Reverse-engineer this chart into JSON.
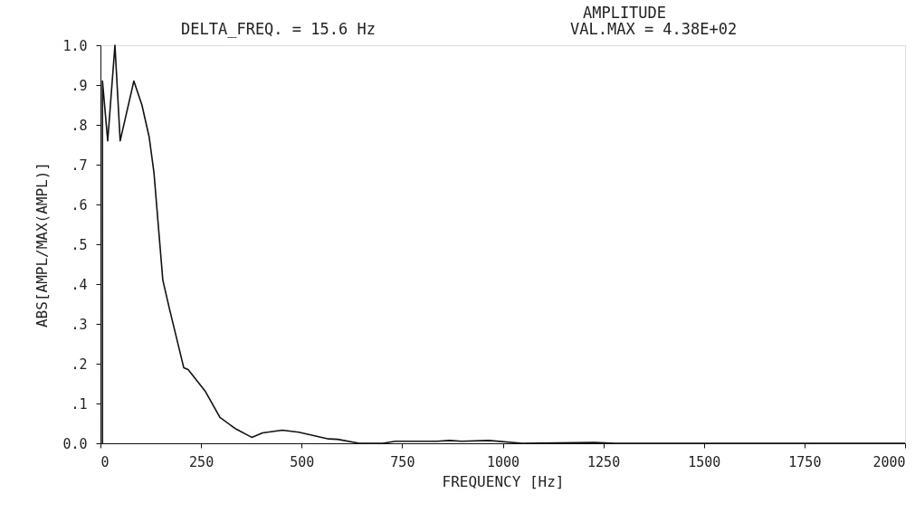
{
  "chart_data": {
    "type": "line",
    "title": "AMPLITUDE",
    "xlabel": "FREQUENCY [Hz]",
    "ylabel": "ABS[AMPL/MAX(AMPL)]",
    "annotations": [
      "DELTA_FREQ. = 15.6 Hz",
      "VAL.MAX = 4.38E+02"
    ],
    "series": [
      {
        "color": "#111111",
        "x": [
          5,
          5,
          18,
          36,
          49,
          83,
          103,
          121,
          133,
          155,
          171,
          207,
          218,
          261,
          297,
          335,
          376,
          403,
          452,
          493,
          567,
          590,
          643,
          702,
          733,
          837,
          868,
          898,
          965,
          1048,
          1228,
          1280,
          1500,
          1750,
          2000
        ],
        "values": [
          0,
          0.91,
          0.76,
          1.0,
          0.76,
          0.91,
          0.85,
          0.77,
          0.68,
          0.41,
          0.34,
          0.19,
          0.185,
          0.13,
          0.065,
          0.037,
          0.015,
          0.026,
          0.033,
          0.028,
          0.011,
          0.01,
          0,
          0,
          0.005,
          0.005,
          0.007,
          0.005,
          0.007,
          0,
          0.002,
          0,
          0,
          0,
          0
        ]
      }
    ],
    "xlim": [
      0,
      2000
    ],
    "xticks": [
      0,
      250,
      500,
      750,
      1000,
      1250,
      1500,
      1750,
      2000
    ],
    "ylim": [
      0,
      1.0
    ],
    "yticks": [
      {
        "value": 0,
        "label": "0.0"
      },
      {
        "value": 0.1,
        "label": ".1"
      },
      {
        "value": 0.2,
        "label": ".2"
      },
      {
        "value": 0.3,
        "label": ".3"
      },
      {
        "value": 0.4,
        "label": ".4"
      },
      {
        "value": 0.5,
        "label": ".5"
      },
      {
        "value": 0.6,
        "label": ".6"
      },
      {
        "value": 0.7,
        "label": ".7"
      },
      {
        "value": 0.8,
        "label": ".8"
      },
      {
        "value": 0.9,
        "label": ".9"
      },
      {
        "value": 1.0,
        "label": "1.0"
      }
    ],
    "grid": false,
    "marker": "none",
    "line_style": "solid"
  }
}
